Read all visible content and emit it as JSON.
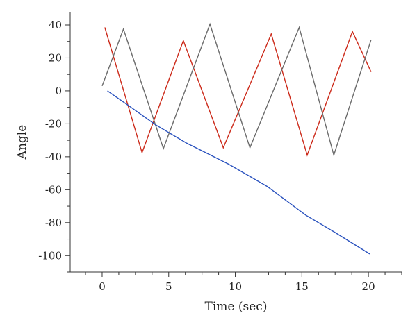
{
  "chart_data": {
    "type": "line",
    "title": "",
    "xlabel": "Time (sec)",
    "ylabel": "Angle",
    "xlim": [
      -2.4,
      22.5
    ],
    "ylim": [
      -110,
      48
    ],
    "x_ticks": [
      0,
      5,
      10,
      15,
      20
    ],
    "y_ticks": [
      40,
      20,
      0,
      -20,
      -40,
      -60,
      -80,
      -100
    ],
    "x_tick_labels": [
      "0",
      "5",
      "10",
      "15",
      "20"
    ],
    "y_tick_labels": [
      "40",
      "20",
      "0",
      "-20",
      "-40",
      "-60",
      "-80",
      "-100"
    ],
    "x_minor_step": 1.25,
    "y_minor_step": 10,
    "grid": false,
    "legend": "none",
    "series": [
      {
        "color": "#cc2a1a",
        "points": [
          [
            0.2,
            38.5
          ],
          [
            3.0,
            -37.5
          ],
          [
            6.1,
            30.5
          ],
          [
            9.1,
            -34.5
          ],
          [
            12.7,
            34.5
          ],
          [
            15.4,
            -39.0
          ],
          [
            18.8,
            36.0
          ],
          [
            20.2,
            11.5
          ]
        ]
      },
      {
        "color": "#6a6a6a",
        "points": [
          [
            0.0,
            3.0
          ],
          [
            1.6,
            37.5
          ],
          [
            4.6,
            -35.0
          ],
          [
            8.1,
            40.5
          ],
          [
            11.1,
            -34.5
          ],
          [
            14.8,
            38.5
          ],
          [
            17.4,
            -39.0
          ],
          [
            20.2,
            31.0
          ]
        ]
      },
      {
        "color": "#2a52be",
        "points": [
          [
            0.4,
            0.0
          ],
          [
            2.0,
            -9.0
          ],
          [
            4.0,
            -20.5
          ],
          [
            6.3,
            -31.5
          ],
          [
            9.5,
            -44.5
          ],
          [
            12.4,
            -58.0
          ],
          [
            15.3,
            -75.5
          ],
          [
            17.5,
            -86.0
          ],
          [
            20.1,
            -99.0
          ]
        ]
      }
    ]
  }
}
